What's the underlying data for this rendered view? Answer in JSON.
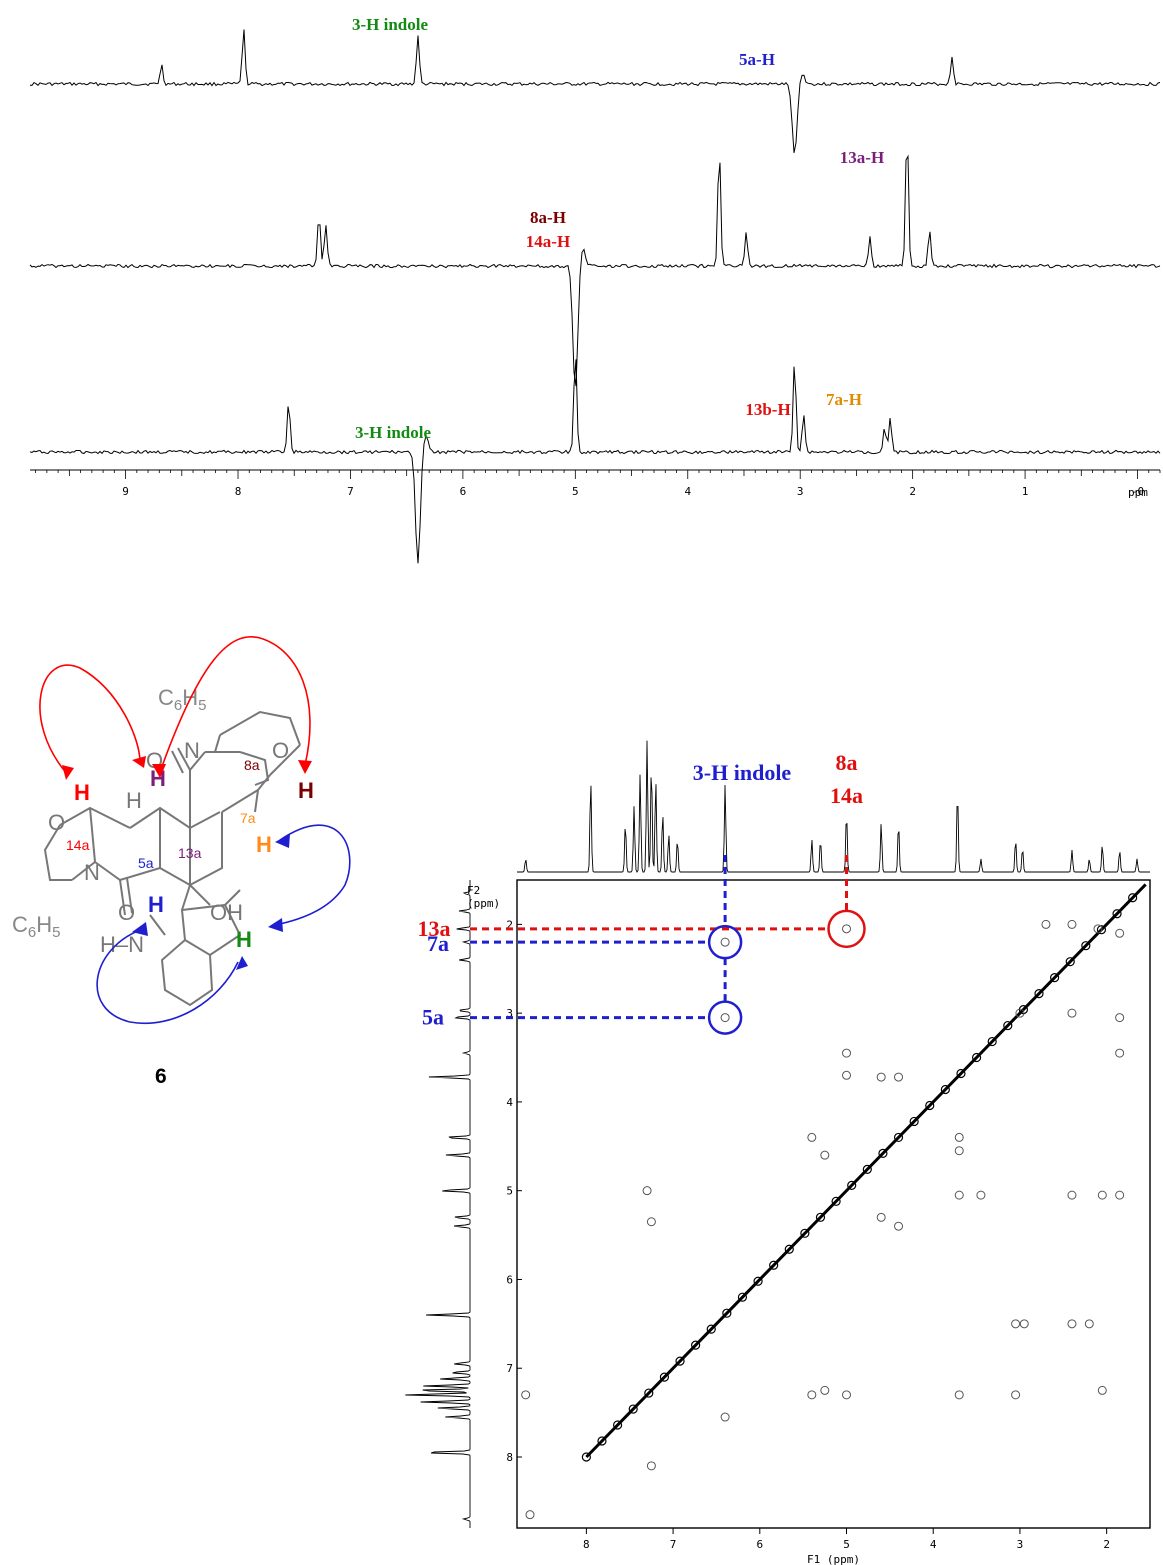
{
  "noe_spectra": {
    "axis": {
      "unit": "ppm",
      "ticks": [
        "9",
        "8",
        "7",
        "6",
        "5",
        "4",
        "3",
        "2",
        "1",
        "-0"
      ],
      "tick_values": [
        9,
        8,
        7,
        6,
        5,
        4,
        3,
        2,
        1,
        0
      ],
      "xlim": [
        9.85,
        -0.2
      ]
    },
    "traces": [
      {
        "irradiated": "5a-H",
        "irradiated_ppm": 3.05,
        "color": "#1f1fd0",
        "peaks": [
          {
            "ppm": 8.68,
            "h": 0.35
          },
          {
            "ppm": 7.95,
            "h": 1.0
          },
          {
            "ppm": 6.4,
            "h": 0.9
          },
          {
            "ppm": 1.65,
            "h": 0.5
          }
        ],
        "annotations": [
          {
            "text": "3-H indole",
            "color": "#138a13"
          },
          {
            "text": "5a-H",
            "color": "#1f1fd0"
          }
        ]
      },
      {
        "irradiated": "8a-H / 14a-H",
        "irradiated_ppm": 5.0,
        "color": "#c00000",
        "peaks": [
          {
            "ppm": 7.28,
            "h": 0.55
          },
          {
            "ppm": 7.22,
            "h": 0.45
          },
          {
            "ppm": 3.72,
            "h": 1.25
          },
          {
            "ppm": 3.48,
            "h": 0.35
          },
          {
            "ppm": 2.38,
            "h": 0.3
          },
          {
            "ppm": 2.05,
            "h": 1.45
          },
          {
            "ppm": 1.85,
            "h": 0.4
          }
        ],
        "annotations": [
          {
            "text": "8a-H",
            "color": "#7a0000"
          },
          {
            "text": "14a-H",
            "color": "#e01010"
          },
          {
            "text": "13a-H",
            "color": "#7a1f7a"
          }
        ]
      },
      {
        "irradiated": "3-H indole",
        "irradiated_ppm": 6.4,
        "color": "#138a13",
        "peaks": [
          {
            "ppm": 7.55,
            "h": 0.6
          },
          {
            "ppm": 5.0,
            "h": 1.2
          },
          {
            "ppm": 3.05,
            "h": 1.1
          },
          {
            "ppm": 2.97,
            "h": 0.45
          },
          {
            "ppm": 2.25,
            "h": 0.3
          },
          {
            "ppm": 2.2,
            "h": 0.4
          }
        ],
        "annotations": [
          {
            "text": "3-H indole",
            "color": "#138a13"
          },
          {
            "text": "13b-H",
            "color": "#e01010"
          },
          {
            "text": "7a-H",
            "color": "#e08a00"
          }
        ]
      }
    ]
  },
  "molecule": {
    "compound_number": "6",
    "substituent": "C6H5",
    "labels": {
      "c8a": "8a",
      "c14a": "14a",
      "c13a": "13a",
      "c7a": "7a",
      "c5a": "5a",
      "oh": "OH",
      "o": "O",
      "n": "N",
      "h": "H",
      "nh": "H–N"
    }
  },
  "chart_data": {
    "type": "scatter",
    "title": "",
    "xlabel": "F1 (ppm)",
    "ylabel": "F2 (ppm)",
    "xlim": [
      8.8,
      1.5
    ],
    "ylim": [
      1.5,
      8.8
    ],
    "x_ticks": [
      8,
      7,
      6,
      5,
      4,
      3,
      2
    ],
    "y_ticks": [
      2,
      3,
      4,
      5,
      6,
      7,
      8
    ],
    "annotations": {
      "indole": "3-H indole",
      "top_right_1": "8a",
      "top_right_2": "14a",
      "row_13a": "13a",
      "row_7a": "7a",
      "row_5a": "5a"
    },
    "cross_peaks": [
      {
        "x": 2.7,
        "y": 2.0
      },
      {
        "x": 2.4,
        "y": 2.0
      },
      {
        "x": 2.1,
        "y": 2.05
      },
      {
        "x": 1.85,
        "y": 2.1
      },
      {
        "x": 5.0,
        "y": 2.05
      },
      {
        "x": 6.4,
        "y": 2.2
      },
      {
        "x": 6.4,
        "y": 3.05
      },
      {
        "x": 5.0,
        "y": 3.45
      },
      {
        "x": 5.0,
        "y": 3.7
      },
      {
        "x": 4.6,
        "y": 3.72
      },
      {
        "x": 4.4,
        "y": 3.72
      },
      {
        "x": 3.0,
        "y": 3.0
      },
      {
        "x": 2.4,
        "y": 3.0
      },
      {
        "x": 1.85,
        "y": 3.05
      },
      {
        "x": 1.85,
        "y": 3.45
      },
      {
        "x": 3.7,
        "y": 4.4
      },
      {
        "x": 3.7,
        "y": 4.55
      },
      {
        "x": 5.4,
        "y": 4.4
      },
      {
        "x": 5.25,
        "y": 4.6
      },
      {
        "x": 3.7,
        "y": 5.05
      },
      {
        "x": 3.45,
        "y": 5.05
      },
      {
        "x": 2.4,
        "y": 5.05
      },
      {
        "x": 2.05,
        "y": 5.05
      },
      {
        "x": 1.85,
        "y": 5.05
      },
      {
        "x": 7.3,
        "y": 5.0
      },
      {
        "x": 7.25,
        "y": 5.35
      },
      {
        "x": 4.6,
        "y": 5.3
      },
      {
        "x": 4.4,
        "y": 5.4
      },
      {
        "x": 3.05,
        "y": 6.5
      },
      {
        "x": 2.95,
        "y": 6.5
      },
      {
        "x": 2.4,
        "y": 6.5
      },
      {
        "x": 2.2,
        "y": 6.5
      },
      {
        "x": 5.4,
        "y": 7.3
      },
      {
        "x": 5.25,
        "y": 7.25
      },
      {
        "x": 5.0,
        "y": 7.3
      },
      {
        "x": 3.7,
        "y": 7.3
      },
      {
        "x": 3.05,
        "y": 7.3
      },
      {
        "x": 2.05,
        "y": 7.25
      },
      {
        "x": 8.7,
        "y": 7.3
      },
      {
        "x": 6.4,
        "y": 7.55
      },
      {
        "x": 7.25,
        "y": 8.1
      },
      {
        "x": 8.65,
        "y": 8.65
      }
    ],
    "diagonal_range": [
      8.0,
      1.55
    ]
  }
}
